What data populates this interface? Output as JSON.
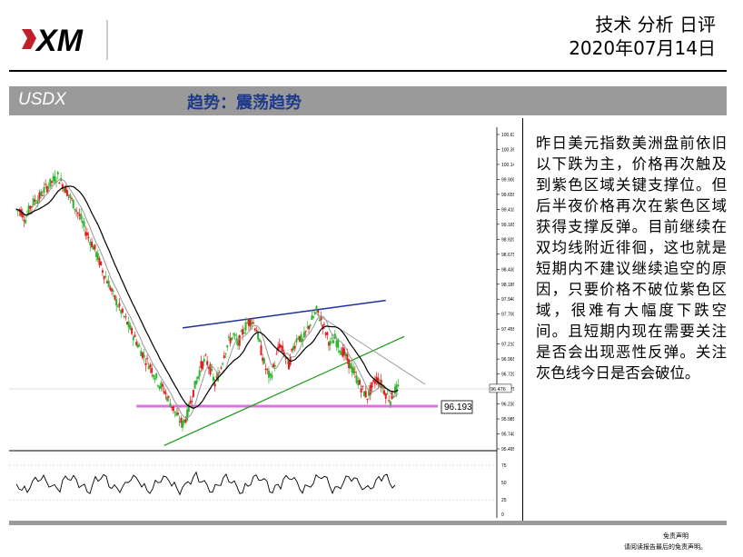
{
  "brand": {
    "logo_text": "XM"
  },
  "header": {
    "report_type": "技术 分析 日评",
    "date": "2020年07月14日"
  },
  "section": {
    "symbol": "USDX",
    "trend": "趋势：震荡趋势"
  },
  "commentary": "昨日美元指数美洲盘前依旧以下跌为主，价格再次触及到紫色区域关键支撑位。但后半夜价格再次在紫色区域获得支撑反弹。目前继续在双均线附近徘徊，这也就是短期内不建议继续追空的原因，只要价格不破位紫色区域，很难有大幅度下跌空间。且短期内现在需要关注是否会出现恶性反弹。关注灰色线今日是否会破位。",
  "footer": {
    "disclaimer_title": "免责声明",
    "disclaimer_text": "请阅读报告最后的免责声明。"
  },
  "colors": {
    "support": "#e070e0",
    "upper_trend": "#1f2f9f",
    "lower_trend": "#1a9a1a",
    "grey_line": "#a0a0a0",
    "ma_fast": "#000000",
    "ma_slow": "#888888"
  },
  "chart_data": {
    "type": "line",
    "subtype": "candlestick-with-indicator",
    "y_ticks": [
      "100.630",
      "100.390",
      "100.145",
      "99.900",
      "99.655",
      "99.410",
      "99.165",
      "98.920",
      "98.675",
      "98.430",
      "98.185",
      "97.940",
      "97.700",
      "97.455",
      "97.210",
      "96.965",
      "96.720",
      "96.475",
      "96.230",
      "95.985",
      "95.740",
      "95.495"
    ],
    "ylim": [
      95.495,
      100.63
    ],
    "current_price": "96.476",
    "support_level": "96.193",
    "close_series": [
      99.4,
      99.38,
      99.25,
      99.45,
      99.55,
      99.6,
      99.72,
      99.8,
      99.88,
      99.95,
      99.82,
      99.7,
      99.55,
      99.4,
      99.25,
      99.05,
      98.9,
      98.75,
      98.55,
      98.35,
      98.2,
      98.0,
      97.85,
      97.7,
      97.55,
      97.4,
      97.25,
      97.1,
      96.95,
      96.85,
      96.7,
      96.55,
      96.45,
      96.3,
      96.15,
      96.0,
      95.9,
      96.05,
      96.35,
      96.6,
      96.85,
      96.95,
      96.8,
      96.55,
      96.75,
      97.05,
      97.25,
      97.35,
      97.2,
      97.4,
      97.55,
      97.6,
      97.45,
      97.1,
      96.8,
      96.65,
      96.9,
      97.2,
      97.05,
      96.85,
      97.15,
      97.35,
      97.25,
      97.45,
      97.6,
      97.75,
      97.6,
      97.4,
      97.2,
      97.3,
      97.15,
      97.05,
      96.9,
      96.75,
      96.6,
      96.45,
      96.35,
      96.5,
      96.65,
      96.55,
      96.4,
      96.3,
      96.45,
      96.5
    ],
    "indicator_levels": [
      "75",
      "50",
      "25",
      "0"
    ]
  }
}
